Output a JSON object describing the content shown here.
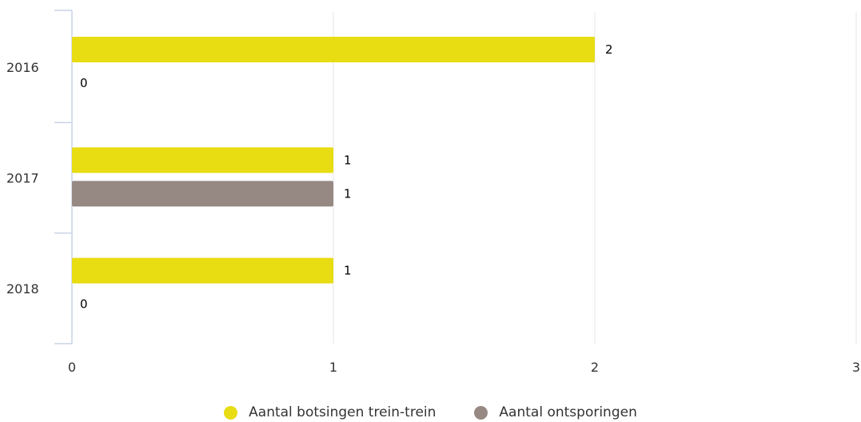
{
  "chart_data": {
    "type": "bar",
    "orientation": "horizontal",
    "categories": [
      "2016",
      "2017",
      "2018"
    ],
    "series": [
      {
        "name": "Aantal botsingen trein-trein",
        "values": [
          2,
          1,
          1
        ],
        "color": "#e8dc12"
      },
      {
        "name": "Aantal ontsporingen",
        "values": [
          0,
          1,
          0
        ],
        "color": "#968883"
      }
    ],
    "x_ticks": [
      "0",
      "1",
      "2",
      "3"
    ],
    "xlim": [
      0,
      3
    ],
    "grid": true,
    "legend_position": "bottom"
  }
}
